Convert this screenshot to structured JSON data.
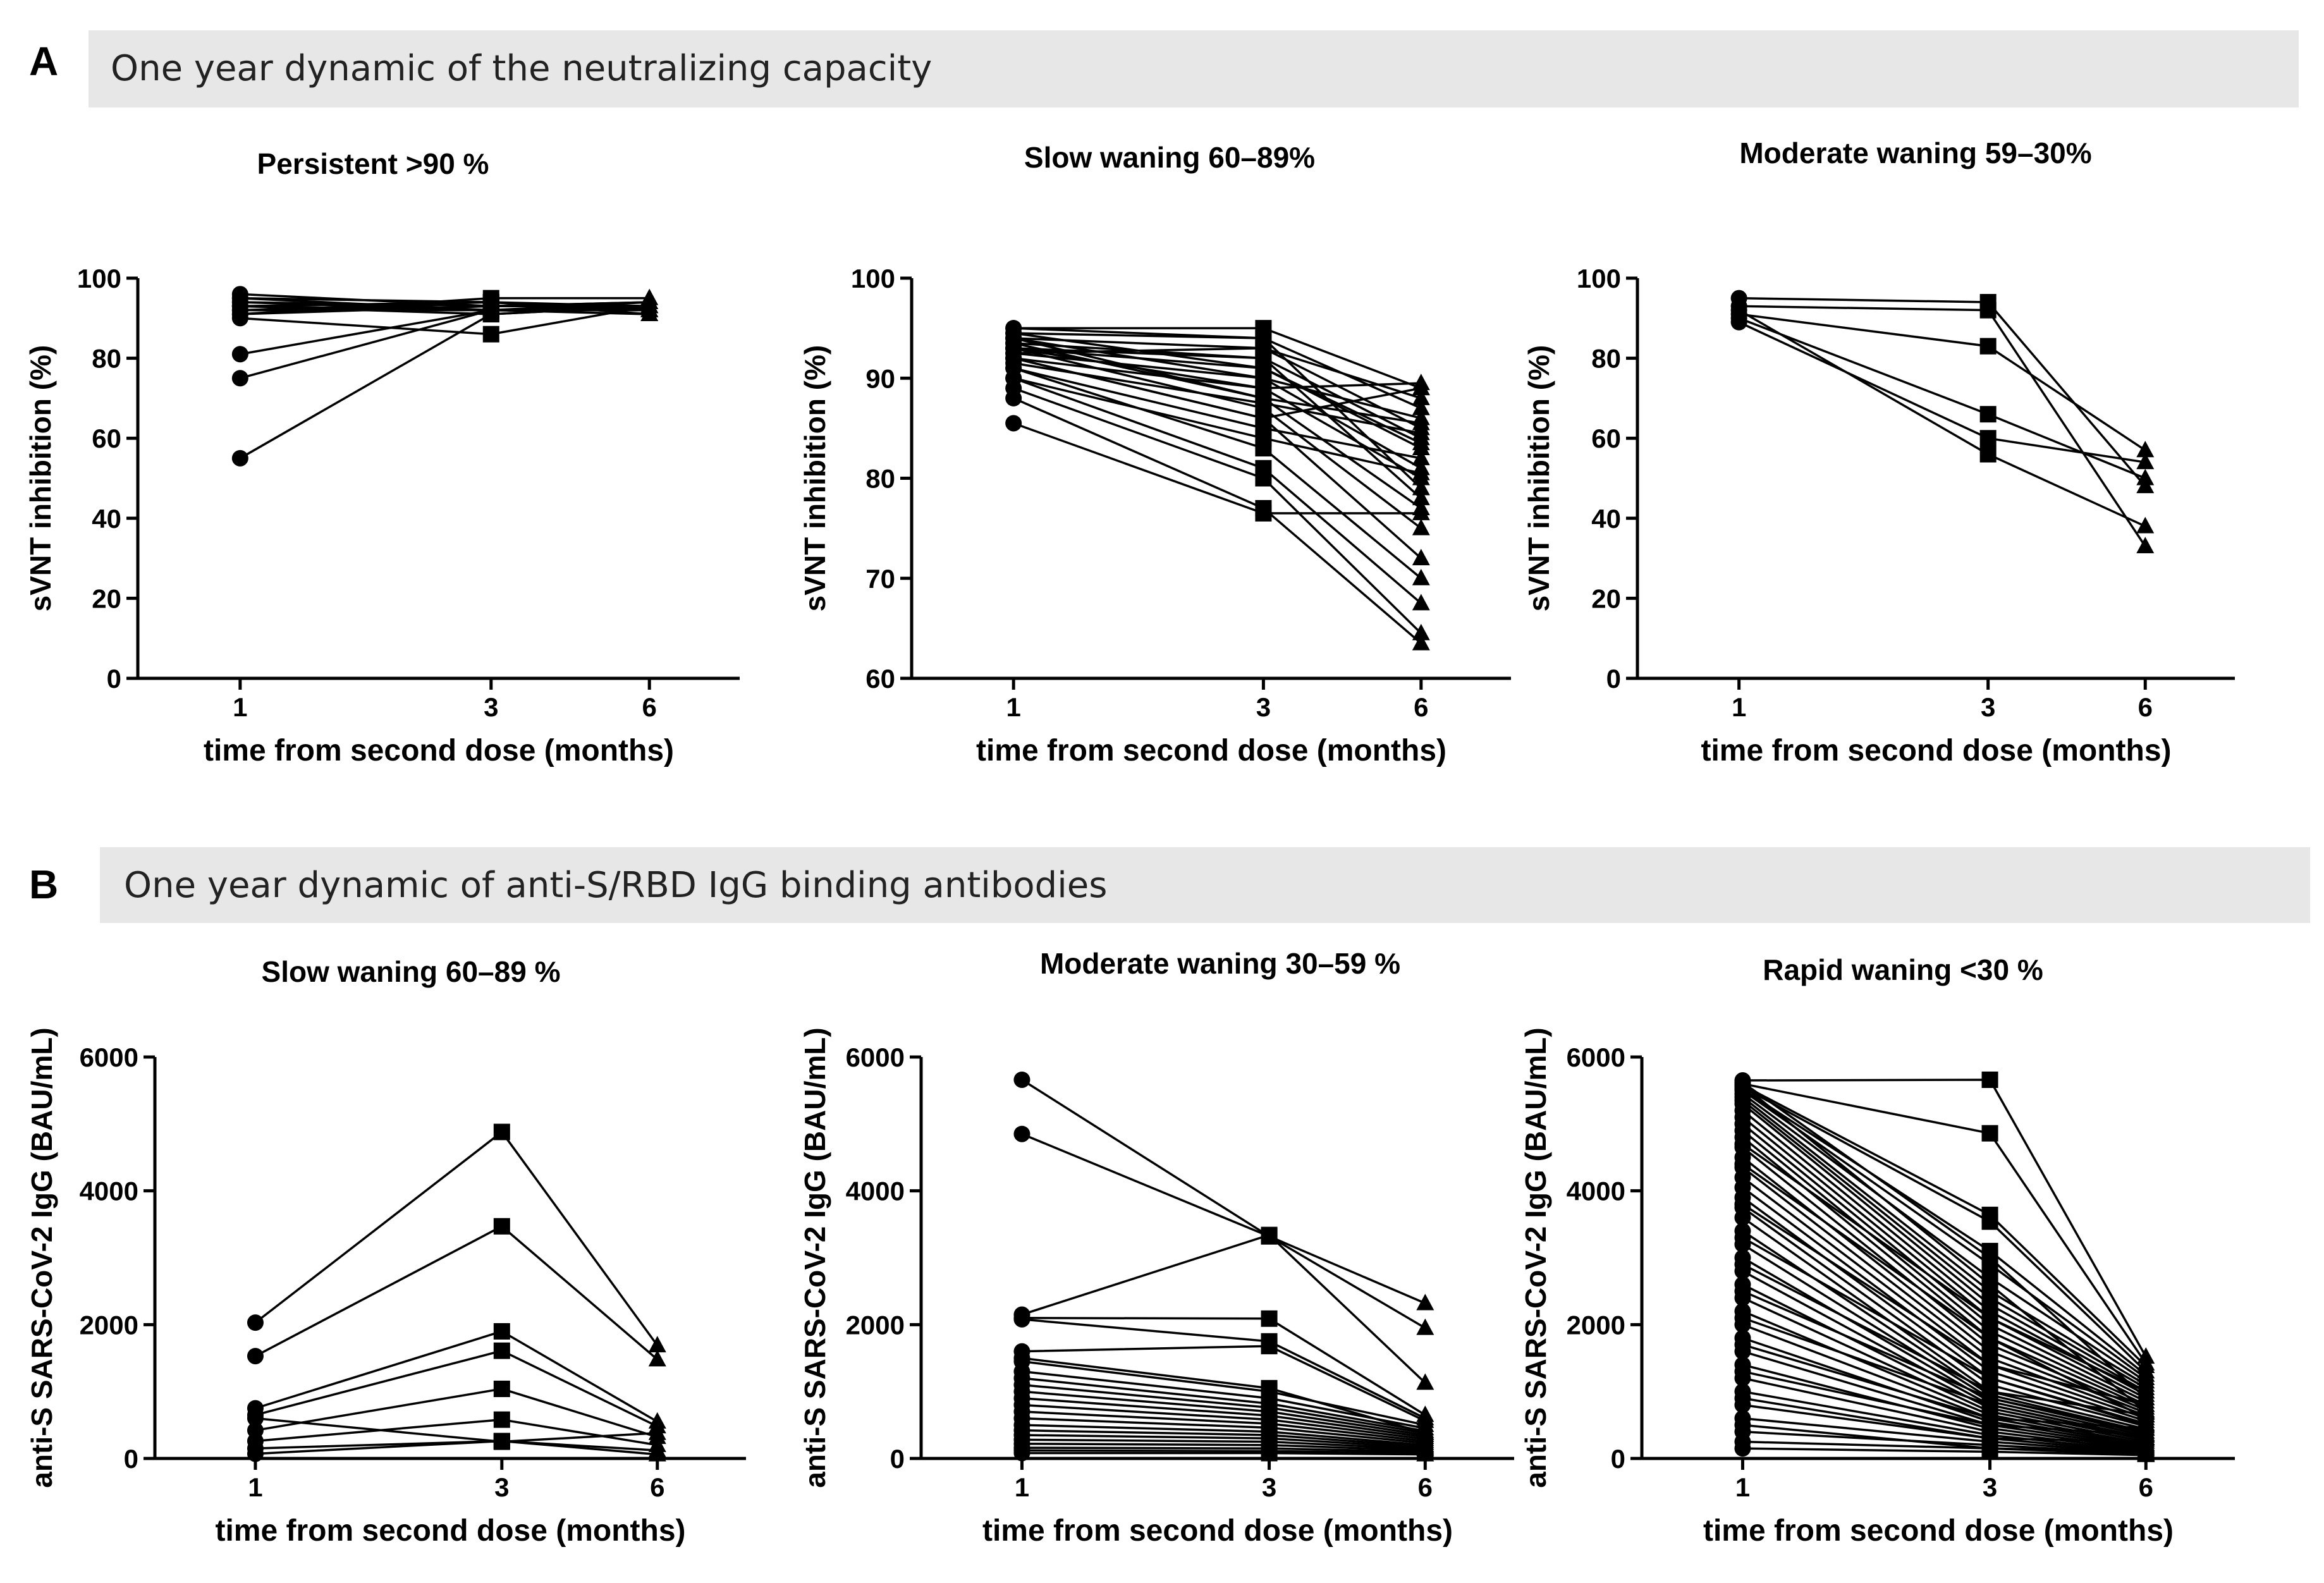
{
  "panels": [
    {
      "letter": "A",
      "banner": "One year dynamic of the neutralizing capacity"
    },
    {
      "letter": "B",
      "banner": "One year dynamic of anti-S/RBD IgG binding antibodies"
    }
  ],
  "chart_data": [
    {
      "type": "line",
      "title": "Persistent >90 %",
      "xlabel": "time from second dose (months)",
      "ylabel": "sVNT inhibition (%)",
      "x_ticks": [
        "1",
        "3",
        "6"
      ],
      "ylim": [
        0,
        100
      ],
      "y_ticks": [
        0,
        20,
        40,
        60,
        80,
        100
      ],
      "markers": [
        "circle",
        "square",
        "triangle"
      ],
      "series": [
        {
          "values": [
            55,
            91,
            93
          ]
        },
        {
          "values": [
            75,
            92,
            93
          ]
        },
        {
          "values": [
            81,
            92,
            92
          ]
        },
        {
          "values": [
            90,
            86,
            93
          ]
        },
        {
          "values": [
            91,
            95,
            95
          ]
        },
        {
          "values": [
            92,
            92,
            94
          ]
        },
        {
          "values": [
            93,
            94,
            91
          ]
        },
        {
          "values": [
            94,
            93,
            93
          ]
        },
        {
          "values": [
            95,
            92,
            92
          ]
        },
        {
          "values": [
            96,
            93,
            94
          ]
        },
        {
          "values": [
            93,
            91,
            93
          ]
        },
        {
          "values": [
            92,
            94,
            92
          ]
        },
        {
          "values": [
            94,
            92,
            91
          ]
        },
        {
          "values": [
            91,
            93,
            94
          ]
        },
        {
          "values": [
            95,
            94,
            93
          ]
        },
        {
          "values": [
            93,
            92,
            92
          ]
        }
      ]
    },
    {
      "type": "line",
      "title": "Slow waning 60–89%",
      "xlabel": "time from second dose (months)",
      "ylabel": "sVNT inhibition (%)",
      "x_ticks": [
        "1",
        "3",
        "6"
      ],
      "ylim": [
        60,
        100
      ],
      "y_ticks": [
        60,
        70,
        80,
        90,
        100
      ],
      "markers": [
        "circle",
        "square",
        "triangle"
      ],
      "series": [
        {
          "values": [
            95,
            95,
            89
          ]
        },
        {
          "values": [
            94.5,
            94,
            87
          ]
        },
        {
          "values": [
            94,
            93,
            85
          ]
        },
        {
          "values": [
            93.5,
            92,
            84
          ]
        },
        {
          "values": [
            93,
            91,
            83
          ]
        },
        {
          "values": [
            92.5,
            90,
            81
          ]
        },
        {
          "values": [
            92,
            89,
            80
          ]
        },
        {
          "values": [
            94,
            88,
            77
          ]
        },
        {
          "values": [
            93,
            87,
            75
          ]
        },
        {
          "values": [
            92,
            86,
            72
          ]
        },
        {
          "values": [
            91,
            83,
            70
          ]
        },
        {
          "values": [
            90,
            81,
            67.5
          ]
        },
        {
          "values": [
            89,
            80,
            64.5
          ]
        },
        {
          "values": [
            88,
            77,
            63.5
          ]
        },
        {
          "values": [
            85.5,
            76.5,
            76.5
          ]
        },
        {
          "values": [
            93,
            92,
            78
          ]
        },
        {
          "values": [
            94,
            90,
            86
          ]
        },
        {
          "values": [
            92,
            86,
            89
          ]
        },
        {
          "values": [
            91,
            85,
            82
          ]
        },
        {
          "values": [
            95,
            94,
            79
          ]
        },
        {
          "values": [
            93.5,
            88,
            85.5
          ]
        },
        {
          "values": [
            92.5,
            93,
            88
          ]
        },
        {
          "values": [
            94.5,
            91,
            83.5
          ]
        },
        {
          "values": [
            90,
            84,
            80.5
          ]
        },
        {
          "values": [
            93,
            89,
            89.5
          ]
        },
        {
          "values": [
            91.5,
            87.5,
            84.5
          ]
        }
      ]
    },
    {
      "type": "line",
      "title": "Moderate waning 59–30%",
      "xlabel": "time from second dose (months)",
      "ylabel": "sVNT inhibition (%)",
      "x_ticks": [
        "1",
        "3",
        "6"
      ],
      "ylim": [
        0,
        100
      ],
      "y_ticks": [
        0,
        20,
        40,
        60,
        80,
        100
      ],
      "markers": [
        "circle",
        "square",
        "triangle"
      ],
      "series": [
        {
          "values": [
            95,
            94,
            48
          ]
        },
        {
          "values": [
            93,
            92,
            33
          ]
        },
        {
          "values": [
            91,
            83,
            57
          ]
        },
        {
          "values": [
            90,
            66,
            50
          ]
        },
        {
          "values": [
            89,
            60,
            54
          ]
        },
        {
          "values": [
            92,
            56,
            38
          ]
        }
      ]
    },
    {
      "type": "line",
      "title": "Slow waning 60–89 %",
      "xlabel": "time from second dose (months)",
      "ylabel": "anti-S SARS-CoV-2 IgG (BAU/mL)",
      "x_ticks": [
        "1",
        "3",
        "6"
      ],
      "ylim": [
        0,
        6000
      ],
      "y_ticks": [
        0,
        2000,
        4000,
        6000
      ],
      "markers": [
        "circle",
        "square",
        "triangle"
      ],
      "series": [
        {
          "values": [
            2030,
            4880,
            1690
          ]
        },
        {
          "values": [
            1530,
            3470,
            1480
          ]
        },
        {
          "values": [
            750,
            1900,
            550
          ]
        },
        {
          "values": [
            650,
            1610,
            480
          ]
        },
        {
          "values": [
            420,
            1040,
            320
          ]
        },
        {
          "values": [
            260,
            580,
            200
          ]
        },
        {
          "values": [
            150,
            260,
            120
          ]
        },
        {
          "values": [
            70,
            260,
            60
          ]
        },
        {
          "values": [
            600,
            250,
            380
          ]
        }
      ]
    },
    {
      "type": "line",
      "title": "Moderate waning 30–59 %",
      "xlabel": "time from second dose (months)",
      "ylabel": "anti-S SARS-CoV-2 IgG (BAU/mL)",
      "x_ticks": [
        "1",
        "3",
        "6"
      ],
      "ylim": [
        0,
        6000
      ],
      "y_ticks": [
        0,
        2000,
        4000,
        6000
      ],
      "markers": [
        "circle",
        "square",
        "triangle"
      ],
      "series": [
        {
          "values": [
            5660,
            3320,
            2320
          ]
        },
        {
          "values": [
            4850,
            3320,
            1950
          ]
        },
        {
          "values": [
            2150,
            3340,
            1130
          ]
        },
        {
          "values": [
            2100,
            2090,
            650
          ]
        },
        {
          "values": [
            2080,
            1750,
            600
          ]
        },
        {
          "values": [
            1600,
            1680,
            560
          ]
        },
        {
          "values": [
            1450,
            1000,
            500
          ]
        },
        {
          "values": [
            1300,
            900,
            450
          ]
        },
        {
          "values": [
            1200,
            820,
            410
          ]
        },
        {
          "values": [
            1100,
            760,
            380
          ]
        },
        {
          "values": [
            1000,
            700,
            350
          ]
        },
        {
          "values": [
            900,
            640,
            320
          ]
        },
        {
          "values": [
            800,
            580,
            290
          ]
        },
        {
          "values": [
            700,
            520,
            260
          ]
        },
        {
          "values": [
            600,
            460,
            230
          ]
        },
        {
          "values": [
            500,
            400,
            200
          ]
        },
        {
          "values": [
            420,
            350,
            180
          ]
        },
        {
          "values": [
            350,
            300,
            160
          ]
        },
        {
          "values": [
            280,
            250,
            140
          ]
        },
        {
          "values": [
            220,
            200,
            120
          ]
        },
        {
          "values": [
            160,
            150,
            100
          ]
        },
        {
          "values": [
            120,
            110,
            80
          ]
        },
        {
          "values": [
            80,
            80,
            60
          ]
        },
        {
          "values": [
            1500,
            1050,
            380
          ]
        }
      ]
    },
    {
      "type": "line",
      "title": "Rapid waning <30 %",
      "xlabel": "time from second dose (months)",
      "ylabel": "anti-S SARS-CoV-2 IgG (BAU/mL)",
      "x_ticks": [
        "1",
        "3",
        "6"
      ],
      "ylim": [
        0,
        6000
      ],
      "y_ticks": [
        0,
        2000,
        4000,
        6000
      ],
      "markers": [
        "circle",
        "square",
        "triangle"
      ],
      "series": [
        {
          "values": [
            5650,
            5660,
            1520
          ]
        },
        {
          "values": [
            5600,
            4860,
            1420
          ]
        },
        {
          "values": [
            5580,
            3640,
            1380
          ]
        },
        {
          "values": [
            5550,
            3540,
            1300
          ]
        },
        {
          "values": [
            5520,
            3100,
            1250
          ]
        },
        {
          "values": [
            5500,
            2900,
            1200
          ]
        },
        {
          "values": [
            5450,
            2700,
            1150
          ]
        },
        {
          "values": [
            5400,
            2500,
            1100
          ]
        },
        {
          "values": [
            5350,
            2400,
            1050
          ]
        },
        {
          "values": [
            5300,
            2300,
            1000
          ]
        },
        {
          "values": [
            5200,
            2200,
            950
          ]
        },
        {
          "values": [
            5100,
            2100,
            900
          ]
        },
        {
          "values": [
            5000,
            2000,
            850
          ]
        },
        {
          "values": [
            4900,
            1900,
            800
          ]
        },
        {
          "values": [
            4800,
            1800,
            760
          ]
        },
        {
          "values": [
            4650,
            1700,
            720
          ]
        },
        {
          "values": [
            4500,
            1600,
            680
          ]
        },
        {
          "values": [
            4350,
            1500,
            640
          ]
        },
        {
          "values": [
            4200,
            1400,
            600
          ]
        },
        {
          "values": [
            4050,
            1300,
            560
          ]
        },
        {
          "values": [
            3900,
            1200,
            520
          ]
        },
        {
          "values": [
            3750,
            1100,
            480
          ]
        },
        {
          "values": [
            3600,
            1000,
            440
          ]
        },
        {
          "values": [
            3400,
            950,
            400
          ]
        },
        {
          "values": [
            3200,
            900,
            370
          ]
        },
        {
          "values": [
            3000,
            850,
            340
          ]
        },
        {
          "values": [
            2800,
            800,
            310
          ]
        },
        {
          "values": [
            2600,
            750,
            280
          ]
        },
        {
          "values": [
            2400,
            700,
            250
          ]
        },
        {
          "values": [
            2200,
            650,
            220
          ]
        },
        {
          "values": [
            2000,
            600,
            200
          ]
        },
        {
          "values": [
            1800,
            550,
            180
          ]
        },
        {
          "values": [
            1600,
            500,
            160
          ]
        },
        {
          "values": [
            1400,
            450,
            140
          ]
        },
        {
          "values": [
            1200,
            400,
            120
          ]
        },
        {
          "values": [
            1000,
            350,
            100
          ]
        },
        {
          "values": [
            800,
            300,
            90
          ]
        },
        {
          "values": [
            600,
            250,
            80
          ]
        },
        {
          "values": [
            400,
            200,
            70
          ]
        },
        {
          "values": [
            250,
            150,
            60
          ]
        },
        {
          "values": [
            150,
            100,
            50
          ]
        },
        {
          "values": [
            5620,
            3000,
            900
          ]
        },
        {
          "values": [
            5580,
            2600,
            700
          ]
        },
        {
          "values": [
            4700,
            2100,
            1000
          ]
        },
        {
          "values": [
            4400,
            1800,
            600
          ]
        },
        {
          "values": [
            3800,
            1400,
            800
          ]
        },
        {
          "values": [
            3300,
            1200,
            500
          ]
        },
        {
          "values": [
            2900,
            1000,
            650
          ]
        },
        {
          "values": [
            2500,
            900,
            400
          ]
        },
        {
          "values": [
            2100,
            800,
            300
          ]
        },
        {
          "values": [
            1700,
            600,
            450
          ]
        },
        {
          "values": [
            1300,
            500,
            350
          ]
        },
        {
          "values": [
            900,
            300,
            250
          ]
        },
        {
          "values": [
            500,
            150,
            100
          ]
        }
      ]
    }
  ]
}
